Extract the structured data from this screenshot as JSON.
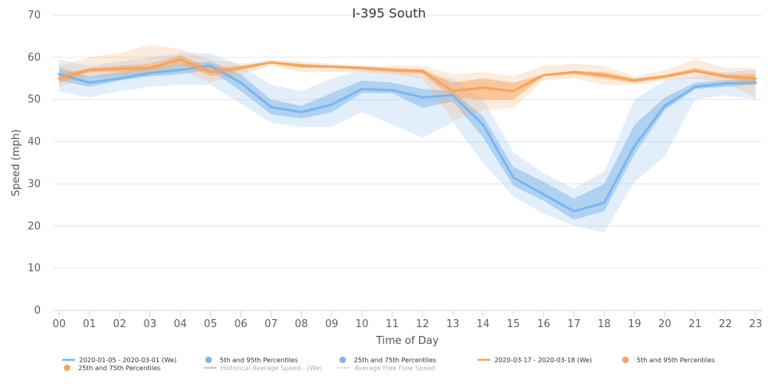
{
  "chart_data": {
    "type": "line",
    "title": "I-395 South",
    "xlabel": "Time of Day",
    "ylabel": "Speed (mph)",
    "ylim": [
      0,
      70
    ],
    "yticks": [
      0,
      10,
      20,
      30,
      40,
      50,
      60,
      70
    ],
    "categories": [
      "00",
      "01",
      "02",
      "03",
      "04",
      "05",
      "06",
      "07",
      "08",
      "09",
      "10",
      "11",
      "12",
      "13",
      "14",
      "15",
      "16",
      "17",
      "18",
      "19",
      "20",
      "21",
      "22",
      "23"
    ],
    "grid": true,
    "legend_position": "bottom",
    "series": [
      {
        "name": "2020-01-05 - 2020-03-01 (We)",
        "color": "#7cb5ec",
        "values": [
          56,
          54,
          55,
          56.3,
          57,
          58,
          54,
          48.2,
          47,
          48.8,
          52.5,
          52.2,
          50.5,
          51,
          44,
          31.5,
          27.5,
          23.5,
          25.5,
          39,
          48.5,
          53,
          53.8,
          54
        ],
        "p25": [
          54.5,
          53,
          54.5,
          55.5,
          56,
          57,
          52,
          46.5,
          45.5,
          47,
          51.5,
          51.5,
          48,
          49.5,
          41,
          29.5,
          26,
          21.5,
          23.5,
          37,
          47.5,
          52.5,
          53,
          53.5
        ],
        "p75": [
          57.5,
          55.5,
          56.5,
          57.5,
          58.5,
          59,
          56,
          50,
          48.5,
          51.5,
          54.5,
          54,
          52.5,
          52,
          46,
          34,
          30.5,
          26.5,
          30,
          44,
          50.5,
          54,
          54.5,
          55
        ],
        "p5": [
          52,
          50.5,
          52,
          53,
          53.5,
          53.5,
          49,
          44.5,
          43.5,
          43.5,
          47,
          44,
          41,
          44.5,
          35,
          27,
          23,
          20,
          18.5,
          30.5,
          36.5,
          50,
          51,
          50
        ],
        "p95": [
          59.5,
          58,
          59,
          60,
          61,
          61,
          58,
          53.5,
          52,
          55,
          57,
          57,
          55.5,
          55,
          50,
          37.5,
          32.5,
          29,
          33,
          50,
          54.5,
          55.5,
          56.5,
          57
        ]
      },
      {
        "name": "2020-03-17 - 2020-03-18 (We)",
        "color": "#f7a35c",
        "values": [
          55,
          57,
          57.3,
          57.5,
          59.5,
          56.5,
          57.5,
          58.8,
          58,
          57.8,
          57.5,
          57,
          56.7,
          52,
          52.8,
          52,
          55.8,
          56.5,
          55.8,
          54.5,
          55.5,
          56.8,
          55.5,
          55
        ],
        "p25": [
          54,
          56.5,
          56.5,
          57,
          58.5,
          55.5,
          57,
          58.5,
          57.5,
          57.5,
          57,
          56.5,
          56,
          50.5,
          50,
          50,
          55.5,
          56,
          55,
          54,
          55,
          56.5,
          55,
          54
        ],
        "p75": [
          56,
          57.5,
          58,
          58.5,
          60.5,
          57.5,
          58,
          59,
          58.5,
          58,
          57.8,
          57.5,
          57.2,
          54,
          55,
          54,
          56,
          56.8,
          56.5,
          55,
          55.8,
          57.5,
          56,
          56
        ],
        "p5": [
          53,
          55.5,
          55.5,
          55.5,
          57,
          54,
          56,
          58,
          56.5,
          56.5,
          56.5,
          56,
          55,
          45,
          47.5,
          48,
          54.5,
          55,
          53.5,
          53.5,
          54.5,
          55,
          54,
          50.5
        ],
        "p95": [
          58,
          60,
          61,
          63,
          62,
          59.5,
          58.5,
          59.5,
          59,
          58.5,
          58,
          58,
          58,
          56,
          56.5,
          55.5,
          58,
          58.5,
          58,
          55.5,
          57,
          59.5,
          57.5,
          57.5
        ]
      }
    ],
    "legend": [
      {
        "label": "2020-01-05 - 2020-03-01 (We)",
        "symbol": "line",
        "color": "#7cb5ec",
        "muted": false
      },
      {
        "label": "5th and 95th Percentiles",
        "symbol": "dot",
        "color": "#7cb5ec",
        "muted": false
      },
      {
        "label": "25th and 75th Percentiles",
        "symbol": "dot",
        "color": "#7cb5ec",
        "muted": false
      },
      {
        "label": "2020-03-17 - 2020-03-18 (We)",
        "symbol": "line",
        "color": "#f7a35c",
        "muted": false
      },
      {
        "label": "5th and 95th Percentiles",
        "symbol": "dot",
        "color": "#f7a35c",
        "muted": false
      },
      {
        "label": "25th and 75th Percentiles",
        "symbol": "dot",
        "color": "#f7a35c",
        "muted": false
      },
      {
        "label": "Historical Average Speed - (We)",
        "symbol": "line",
        "color": "#cccccc",
        "muted": true
      },
      {
        "label": "Average Free Flow Speed",
        "symbol": "dotted",
        "color": "#cccccc",
        "muted": true
      }
    ]
  }
}
